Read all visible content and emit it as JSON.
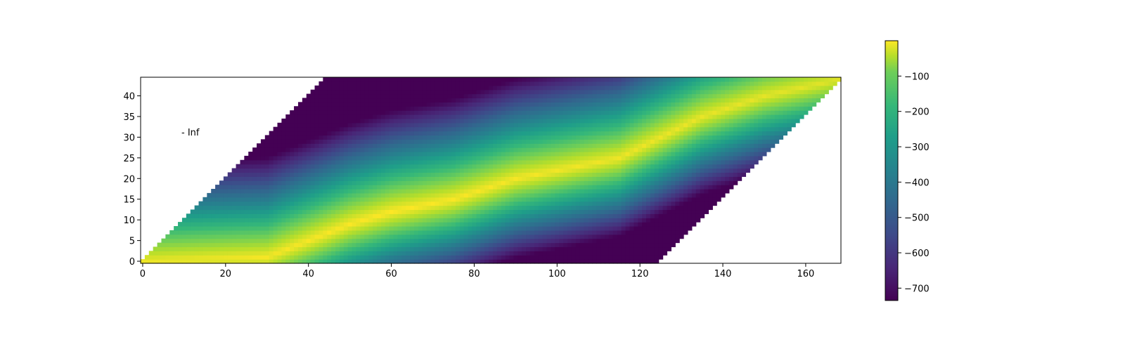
{
  "chart_data": {
    "type": "heatmap",
    "title": "",
    "xlabel": "",
    "ylabel": "",
    "xlim": [
      -0.5,
      168.5
    ],
    "ylim": [
      -0.5,
      44.5
    ],
    "x_ticks": [
      0,
      20,
      40,
      60,
      80,
      100,
      120,
      140,
      160
    ],
    "y_ticks": [
      0,
      5,
      10,
      15,
      20,
      25,
      30,
      35,
      40
    ],
    "colormap": "viridis",
    "color_range": [
      -735,
      0
    ],
    "colorbar_ticks": [
      -100,
      -200,
      -300,
      -400,
      -500,
      -600,
      -700
    ],
    "valid_region": "band: column from 1.0*row to 124+row; outside is -Inf (blank)",
    "approx_values": {
      "bright_ridge": "yellow ridge near 0 running from (0,0) through (40,5), (60,12), (90,20), (115,25) to (168,44)",
      "upper_left_corner": -730,
      "lower_right_edge": -470
    },
    "annotations": [
      {
        "text": "- Inf",
        "x": 9,
        "y": 31
      }
    ]
  }
}
